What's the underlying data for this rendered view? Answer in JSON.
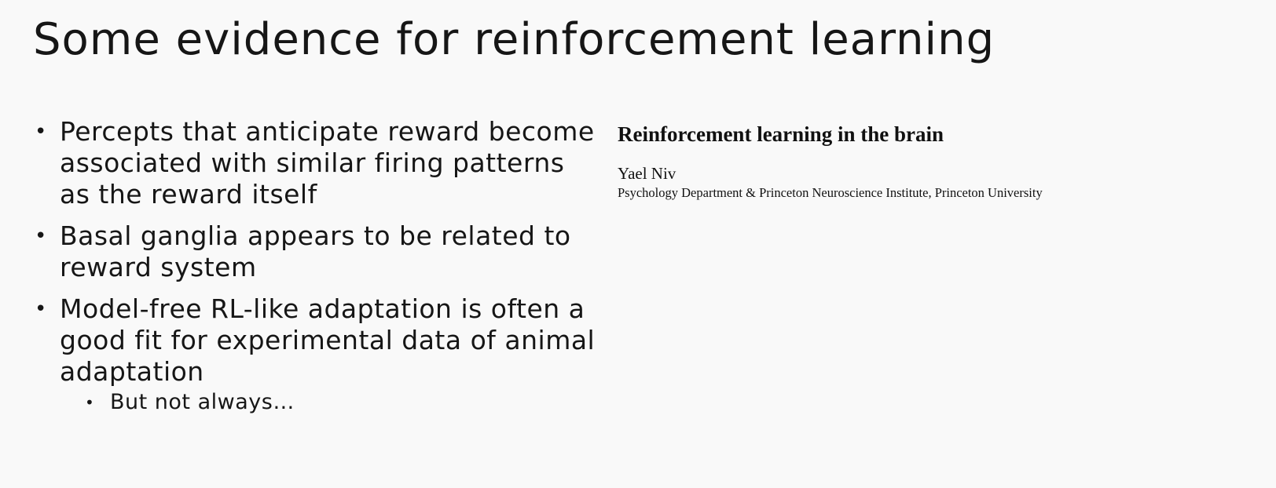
{
  "slide": {
    "title": "Some evidence for reinforcement learning",
    "bullets": [
      {
        "text": "Percepts that anticipate reward become associated with similar firing patterns as the reward itself"
      },
      {
        "text": "Basal ganglia appears to be related to reward system"
      },
      {
        "text": "Model-free RL-like adaptation is often a good fit for experimental data of animal adaptation",
        "sub_bullets": [
          {
            "text": "But not always…"
          }
        ]
      }
    ],
    "bullet_glyph": "•"
  },
  "paper": {
    "title": "Reinforcement learning in the brain",
    "author": "Yael Niv",
    "affiliation": "Psychology Department & Princeton Neuroscience Institute, Princeton University"
  }
}
